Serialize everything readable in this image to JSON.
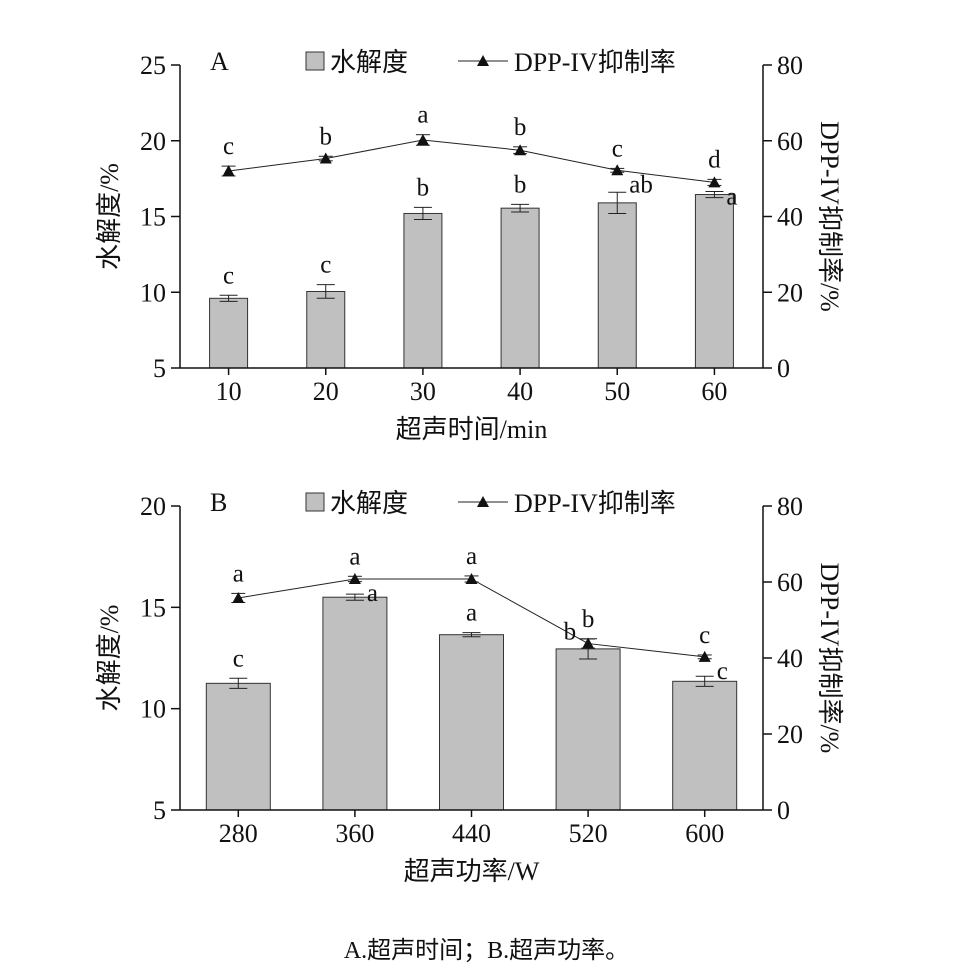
{
  "chart_data": [
    {
      "type": "bar+line",
      "panel_label": "A",
      "xlabel": "超声时间/min",
      "ylabel": "水解度/%",
      "y2label": "DPP-IV抑制率/%",
      "categories": [
        "10",
        "20",
        "30",
        "40",
        "50",
        "60"
      ],
      "ylim": [
        5,
        25
      ],
      "yticks": [
        5,
        10,
        15,
        20,
        25
      ],
      "y2lim": [
        0,
        80
      ],
      "y2ticks": [
        0,
        20,
        40,
        60,
        80
      ],
      "legend": {
        "bar": "水解度",
        "line": "DPP-IV抑制率",
        "placement": "top-center"
      },
      "series": [
        {
          "name": "水解度",
          "kind": "bar",
          "values": [
            9.6,
            10.05,
            15.2,
            15.55,
            15.9,
            16.45
          ],
          "errors": [
            0.2,
            0.45,
            0.4,
            0.25,
            0.7,
            0.2
          ],
          "labels": [
            "c",
            "c",
            "b",
            "b",
            "ab",
            "a"
          ],
          "label_pos": [
            "above",
            "above",
            "above",
            "above",
            "right",
            "right"
          ]
        },
        {
          "name": "DPP-IV抑制率",
          "kind": "line",
          "values": [
            52.0,
            55.3,
            60.2,
            57.5,
            52.2,
            49.0
          ],
          "errors": [
            1.3,
            0.6,
            1.4,
            0.9,
            0.5,
            0.8
          ],
          "labels": [
            "c",
            "b",
            "a",
            "b",
            "c",
            "d"
          ],
          "label_pos": [
            "above",
            "above",
            "above",
            "above",
            "above",
            "above"
          ]
        }
      ]
    },
    {
      "type": "bar+line",
      "panel_label": "B",
      "xlabel": "超声功率/W",
      "ylabel": "水解度/%",
      "y2label": "DPP-IV抑制率/%",
      "categories": [
        "280",
        "360",
        "440",
        "520",
        "600"
      ],
      "ylim": [
        5,
        20
      ],
      "yticks": [
        5,
        10,
        15,
        20
      ],
      "y2lim": [
        0,
        80
      ],
      "y2ticks": [
        0,
        20,
        40,
        60,
        80
      ],
      "legend": {
        "bar": "水解度",
        "line": "DPP-IV抑制率",
        "placement": "top-center"
      },
      "series": [
        {
          "name": "水解度",
          "kind": "bar",
          "values": [
            11.25,
            15.5,
            13.65,
            12.95,
            11.35
          ],
          "errors": [
            0.25,
            0.15,
            0.1,
            0.5,
            0.25
          ],
          "labels": [
            "c",
            "a",
            "a",
            "b",
            "c"
          ],
          "label_pos": [
            "above",
            "right",
            "above",
            "left",
            "right"
          ]
        },
        {
          "name": "DPP-IV抑制率",
          "kind": "line",
          "values": [
            55.8,
            60.8,
            60.8,
            43.8,
            40.3
          ],
          "errors": [
            1.2,
            0.7,
            0.8,
            1.2,
            0.5
          ],
          "labels": [
            "a",
            "a",
            "a",
            "b",
            "c"
          ],
          "label_pos": [
            "above",
            "above",
            "above",
            "above",
            "above"
          ]
        }
      ]
    }
  ],
  "caption": "A.超声时间；B.超声功率。"
}
